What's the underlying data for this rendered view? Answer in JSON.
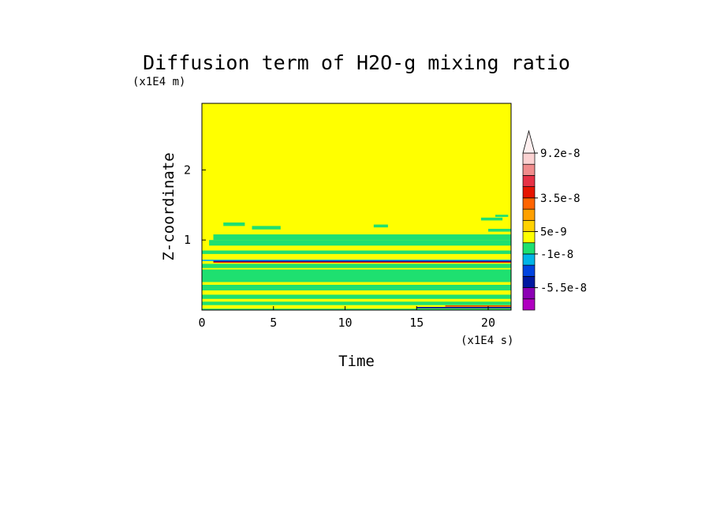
{
  "chart_data": {
    "type": "heatmap",
    "title": "Diffusion term of H2O-g mixing ratio",
    "xlabel": "Time",
    "ylabel": "Z-coordinate",
    "x_unit": "(x1E4 s)",
    "y_unit": "(x1E4 m)",
    "xlim": [
      0,
      21.6
    ],
    "ylim": [
      0,
      2.95
    ],
    "x_ticks": [
      0,
      5,
      10,
      15,
      20
    ],
    "y_ticks": [
      1,
      2
    ],
    "background_value": 0,
    "colorbar": {
      "levels": [
        {
          "color": "#b000c0"
        },
        {
          "color": "#8c00b4"
        },
        {
          "color": "#0018a0"
        },
        {
          "color": "#0044e0"
        },
        {
          "color": "#00b4e6"
        },
        {
          "color": "#1ee070"
        },
        {
          "color": "#ffff00"
        },
        {
          "color": "#ffd200"
        },
        {
          "color": "#ffa000"
        },
        {
          "color": "#ff6400"
        },
        {
          "color": "#e61400"
        },
        {
          "color": "#e63246"
        },
        {
          "color": "#f08c8c"
        },
        {
          "color": "#fbd2d2"
        },
        {
          "color": "#fff0f0"
        }
      ],
      "tick_labels": [
        {
          "label": "-5.5e-8",
          "at_level": 1
        },
        {
          "label": "-1e-8",
          "at_level": 4
        },
        {
          "label": "5e-9",
          "at_level": 6
        },
        {
          "label": "3.5e-8",
          "at_level": 9
        },
        {
          "label": "9.2e-8",
          "at_level": 13
        }
      ],
      "extend_top": true
    },
    "bands": [
      {
        "z0": 1.0,
        "z1": 1.08,
        "t0": 0.8,
        "t1": 21.6,
        "color": "#1ee070"
      },
      {
        "z0": 0.92,
        "z1": 1.0,
        "t0": 0.5,
        "t1": 21.6,
        "color": "#1ee070"
      },
      {
        "z0": 0.8,
        "z1": 0.85,
        "t0": 0.0,
        "t1": 21.6,
        "color": "#1ee070"
      },
      {
        "z0": 0.7,
        "z1": 0.72,
        "t0": 0.0,
        "t1": 21.6,
        "color": "#00b4e6"
      },
      {
        "z0": 0.685,
        "z1": 0.705,
        "t0": 0.8,
        "t1": 21.6,
        "color": "#0018a0"
      },
      {
        "z0": 0.675,
        "z1": 0.69,
        "t0": 0.8,
        "t1": 21.6,
        "color": "#e61400"
      },
      {
        "z0": 0.6,
        "z1": 0.66,
        "t0": 0.0,
        "t1": 21.6,
        "color": "#1ee070"
      },
      {
        "z0": 0.4,
        "z1": 0.58,
        "t0": 0.0,
        "t1": 21.6,
        "color": "#1ee070"
      },
      {
        "z0": 0.28,
        "z1": 0.36,
        "t0": 0.0,
        "t1": 21.6,
        "color": "#1ee070"
      },
      {
        "z0": 0.16,
        "z1": 0.22,
        "t0": 0.0,
        "t1": 21.6,
        "color": "#1ee070"
      },
      {
        "z0": 0.07,
        "z1": 0.12,
        "t0": 0.0,
        "t1": 21.6,
        "color": "#1ee070"
      },
      {
        "z0": 0.05,
        "z1": 0.065,
        "t0": 17.0,
        "t1": 21.6,
        "color": "#e61400"
      },
      {
        "z0": 0.025,
        "z1": 0.045,
        "t0": 15.0,
        "t1": 21.6,
        "color": "#0018a0"
      },
      {
        "z0": 0.0,
        "z1": 0.02,
        "t0": 0.0,
        "t1": 21.6,
        "color": "#1ee070"
      }
    ],
    "patches": [
      {
        "z0": 1.2,
        "z1": 1.25,
        "t0": 1.5,
        "t1": 3.0,
        "color": "#1ee070"
      },
      {
        "z0": 1.15,
        "z1": 1.2,
        "t0": 3.5,
        "t1": 5.5,
        "color": "#1ee070"
      },
      {
        "z0": 1.12,
        "z1": 1.16,
        "t0": 20.0,
        "t1": 21.6,
        "color": "#1ee070"
      },
      {
        "z0": 1.28,
        "z1": 1.32,
        "t0": 19.5,
        "t1": 21.0,
        "color": "#1ee070"
      },
      {
        "z0": 1.33,
        "z1": 1.36,
        "t0": 20.5,
        "t1": 21.4,
        "color": "#1ee070"
      },
      {
        "z0": 1.18,
        "z1": 1.22,
        "t0": 12.0,
        "t1": 13.0,
        "color": "#1ee070"
      }
    ]
  }
}
